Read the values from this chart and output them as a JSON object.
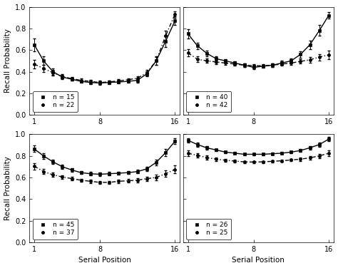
{
  "subplots": [
    {
      "label1": "n = 15",
      "label2": "n = 22",
      "solid_y": [
        0.65,
        0.5,
        0.4,
        0.35,
        0.33,
        0.31,
        0.3,
        0.295,
        0.3,
        0.305,
        0.31,
        0.32,
        0.38,
        0.5,
        0.68,
        0.87
      ],
      "solid_err": [
        0.06,
        0.04,
        0.03,
        0.02,
        0.015,
        0.015,
        0.015,
        0.015,
        0.015,
        0.015,
        0.015,
        0.02,
        0.025,
        0.04,
        0.055,
        0.04
      ],
      "dash_y": [
        0.47,
        0.43,
        0.39,
        0.355,
        0.335,
        0.32,
        0.31,
        0.3,
        0.305,
        0.315,
        0.325,
        0.34,
        0.39,
        0.5,
        0.73,
        0.93
      ],
      "dash_err": [
        0.04,
        0.03,
        0.025,
        0.02,
        0.015,
        0.015,
        0.015,
        0.015,
        0.015,
        0.015,
        0.015,
        0.02,
        0.025,
        0.035,
        0.05,
        0.03
      ],
      "ylim": [
        0,
        1.0
      ],
      "yticks": [
        0,
        0.2,
        0.4,
        0.6,
        0.8,
        1.0
      ]
    },
    {
      "label1": "n = 40",
      "label2": "n = 42",
      "solid_y": [
        0.75,
        0.64,
        0.57,
        0.52,
        0.5,
        0.48,
        0.46,
        0.44,
        0.45,
        0.46,
        0.48,
        0.5,
        0.56,
        0.65,
        0.78,
        0.92
      ],
      "solid_err": [
        0.04,
        0.03,
        0.025,
        0.02,
        0.015,
        0.015,
        0.015,
        0.015,
        0.015,
        0.015,
        0.02,
        0.025,
        0.03,
        0.04,
        0.05,
        0.03
      ],
      "dash_y": [
        0.575,
        0.515,
        0.5,
        0.49,
        0.48,
        0.47,
        0.46,
        0.455,
        0.455,
        0.46,
        0.47,
        0.48,
        0.495,
        0.51,
        0.535,
        0.555
      ],
      "dash_err": [
        0.03,
        0.025,
        0.02,
        0.02,
        0.015,
        0.015,
        0.015,
        0.015,
        0.015,
        0.015,
        0.015,
        0.02,
        0.02,
        0.025,
        0.03,
        0.04
      ],
      "ylim": [
        0,
        1.0
      ],
      "yticks": [
        0,
        0.2,
        0.4,
        0.6,
        0.8,
        1.0
      ]
    },
    {
      "label1": "n = 45",
      "label2": "n = 37",
      "solid_y": [
        0.865,
        0.8,
        0.745,
        0.7,
        0.67,
        0.645,
        0.635,
        0.63,
        0.635,
        0.64,
        0.645,
        0.655,
        0.68,
        0.74,
        0.83,
        0.935
      ],
      "solid_err": [
        0.03,
        0.025,
        0.02,
        0.018,
        0.015,
        0.015,
        0.015,
        0.015,
        0.015,
        0.015,
        0.015,
        0.018,
        0.02,
        0.025,
        0.035,
        0.025
      ],
      "dash_y": [
        0.705,
        0.655,
        0.625,
        0.605,
        0.59,
        0.575,
        0.565,
        0.555,
        0.555,
        0.565,
        0.57,
        0.575,
        0.59,
        0.6,
        0.635,
        0.675
      ],
      "dash_err": [
        0.03,
        0.025,
        0.02,
        0.018,
        0.015,
        0.015,
        0.015,
        0.015,
        0.015,
        0.015,
        0.015,
        0.018,
        0.02,
        0.025,
        0.03,
        0.035
      ],
      "ylim": [
        0,
        1.0
      ],
      "yticks": [
        0,
        0.2,
        0.4,
        0.6,
        0.8,
        1.0
      ]
    },
    {
      "label1": "n = 26",
      "label2": "n = 25",
      "solid_y": [
        0.945,
        0.905,
        0.875,
        0.855,
        0.835,
        0.825,
        0.815,
        0.815,
        0.815,
        0.82,
        0.825,
        0.835,
        0.85,
        0.875,
        0.905,
        0.955
      ],
      "solid_err": [
        0.02,
        0.018,
        0.015,
        0.012,
        0.01,
        0.01,
        0.01,
        0.01,
        0.01,
        0.01,
        0.01,
        0.012,
        0.015,
        0.015,
        0.02,
        0.018
      ],
      "dash_y": [
        0.825,
        0.805,
        0.785,
        0.77,
        0.76,
        0.752,
        0.745,
        0.743,
        0.745,
        0.75,
        0.755,
        0.762,
        0.77,
        0.782,
        0.8,
        0.825
      ],
      "dash_err": [
        0.025,
        0.02,
        0.018,
        0.015,
        0.012,
        0.012,
        0.01,
        0.01,
        0.01,
        0.01,
        0.012,
        0.012,
        0.015,
        0.018,
        0.02,
        0.025
      ],
      "ylim": [
        0,
        1.0
      ],
      "yticks": [
        0,
        0.2,
        0.4,
        0.6,
        0.8,
        1.0
      ]
    }
  ],
  "x": [
    1,
    2,
    3,
    4,
    5,
    6,
    7,
    8,
    9,
    10,
    11,
    12,
    13,
    14,
    15,
    16
  ],
  "xlabel": "Serial Position",
  "ylabel": "Recall Probability",
  "xticks": [
    1,
    8,
    16
  ],
  "line_color": "#000000"
}
